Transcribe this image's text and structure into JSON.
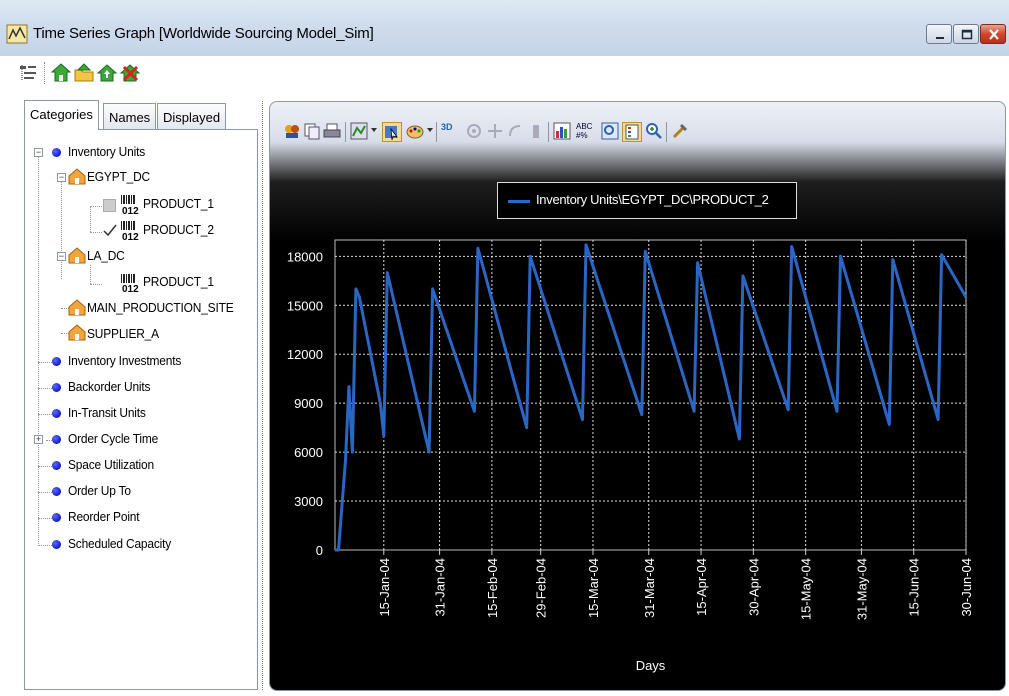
{
  "window": {
    "title": "Time Series Graph [Worldwide Sourcing Model_Sim]",
    "app_icon": "time-series-icon",
    "controls": [
      "minimize-icon",
      "maximize-icon",
      "close-icon"
    ]
  },
  "toolbar": {
    "icons": [
      "tree-options-icon",
      "green-house-icon",
      "folder-house-icon",
      "house-up-icon",
      "house-remove-icon"
    ]
  },
  "tabs": [
    {
      "label": "Categories",
      "active": true
    },
    {
      "label": "Names",
      "active": false
    },
    {
      "label": "Displayed",
      "active": false
    }
  ],
  "tree": {
    "inventory_units": "Inventory Units",
    "egypt_dc": "EGYPT_DC",
    "egypt_product_1": "PRODUCT_1",
    "egypt_product_2": "PRODUCT_2",
    "egypt_product_2_checked": true,
    "la_dc": "LA_DC",
    "la_product_1": "PRODUCT_1",
    "main_production_site": "MAIN_PRODUCTION_SITE",
    "supplier_a": "SUPPLIER_A",
    "inventory_investments": "Inventory Investments",
    "backorder_units": "Backorder Units",
    "in_transit_units": "In-Transit Units",
    "order_cycle_time": "Order Cycle Time",
    "space_utilization": "Space Utilization",
    "order_up_to": "Order Up To",
    "reorder_point": "Reorder Point",
    "scheduled_capacity": "Scheduled Capacity",
    "product_badge": "012"
  },
  "chart_toolbar": {
    "icons": [
      "chart-wizard-icon",
      "copy-icon",
      "print-icon",
      "gallery-icon",
      "select-icon",
      "palette-icon",
      "3d-icon",
      "rotate-icon",
      "perspective-icon",
      "cluster-icon",
      "z-clustered-icon",
      "data-grid-icon",
      "point-labels-icon",
      "zoom-icon",
      "legend-icon",
      "zoom-in-icon",
      "properties-icon"
    ],
    "abc_label": "ABC",
    "threed_label": "3D"
  },
  "chart_data": {
    "type": "line",
    "title": "",
    "xlabel": "Days",
    "ylabel": "",
    "ylim": [
      0,
      19000
    ],
    "yticks": [
      0,
      3000,
      6000,
      9000,
      12000,
      15000,
      18000
    ],
    "xticks": [
      "15-Jan-04",
      "31-Jan-04",
      "15-Feb-04",
      "29-Feb-04",
      "15-Mar-04",
      "31-Mar-04",
      "15-Apr-04",
      "30-Apr-04",
      "15-May-04",
      "31-May-04",
      "15-Jun-04",
      "30-Jun-04"
    ],
    "grid": true,
    "legend_position": "top",
    "series": [
      {
        "name": "Inventory Units\\EGYPT_DC\\PRODUCT_2",
        "color": "#2a66c4",
        "points": [
          [
            "2004-01-01",
            0
          ],
          [
            "2004-01-02",
            0
          ],
          [
            "2004-01-04",
            5500
          ],
          [
            "2004-01-05",
            10000
          ],
          [
            "2004-01-06",
            6000
          ],
          [
            "2004-01-07",
            16000
          ],
          [
            "2004-01-08",
            15500
          ],
          [
            "2004-01-14",
            9000
          ],
          [
            "2004-01-15",
            7000
          ],
          [
            "2004-01-16",
            17000
          ],
          [
            "2004-01-28",
            6000
          ],
          [
            "2004-01-29",
            16000
          ],
          [
            "2004-02-10",
            8500
          ],
          [
            "2004-02-11",
            18500
          ],
          [
            "2004-02-25",
            7500
          ],
          [
            "2004-02-26",
            18000
          ],
          [
            "2004-03-12",
            8000
          ],
          [
            "2004-03-13",
            18700
          ],
          [
            "2004-03-29",
            8300
          ],
          [
            "2004-03-30",
            18300
          ],
          [
            "2004-04-13",
            8500
          ],
          [
            "2004-04-14",
            17600
          ],
          [
            "2004-04-26",
            6800
          ],
          [
            "2004-04-27",
            16800
          ],
          [
            "2004-05-10",
            8600
          ],
          [
            "2004-05-11",
            18600
          ],
          [
            "2004-05-24",
            8500
          ],
          [
            "2004-05-25",
            18000
          ],
          [
            "2004-06-08",
            7700
          ],
          [
            "2004-06-09",
            17800
          ],
          [
            "2004-06-22",
            8000
          ],
          [
            "2004-06-23",
            18100
          ],
          [
            "2004-06-30",
            15500
          ]
        ]
      }
    ]
  }
}
